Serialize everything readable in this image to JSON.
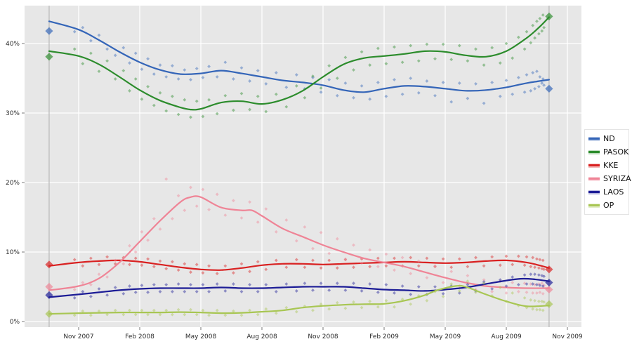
{
  "figure": {
    "title": "",
    "kind": "opinion-polling-scatter-with-loess-trends"
  },
  "legend": {
    "position": "right",
    "labels": [
      "ND",
      "PASOK",
      "KKE",
      "SYRIZA",
      "LAOS",
      "OP"
    ]
  },
  "chart_data": {
    "type": "scatter",
    "title": "",
    "xlabel": "",
    "ylabel": "",
    "grid": true,
    "background_color": "#e7e7e7",
    "gridline_color": "#ffffff",
    "election_line_color": "#bababa",
    "axis_text_color": "#2b2b2b",
    "x_axis": {
      "unit": "months-since-Sep-2007",
      "range_t": [
        -0.66,
        26.7
      ],
      "ticks": [
        {
          "t": 2,
          "label": "Nov 2007"
        },
        {
          "t": 5,
          "label": "Feb 2008"
        },
        {
          "t": 8,
          "label": "May 2008"
        },
        {
          "t": 11,
          "label": "Aug 2008"
        },
        {
          "t": 14,
          "label": "Nov 2008"
        },
        {
          "t": 17,
          "label": "Feb 2009"
        },
        {
          "t": 20,
          "label": "May 2009"
        },
        {
          "t": 23,
          "label": "Aug 2009"
        },
        {
          "t": 26,
          "label": "Nov 2009"
        }
      ]
    },
    "y_axis": {
      "range": [
        -0.8,
        45.4
      ],
      "ticks": [
        {
          "v": 0,
          "label": "0%"
        },
        {
          "v": 10,
          "label": "10%"
        },
        {
          "v": 20,
          "label": "20%"
        },
        {
          "v": 30,
          "label": "30%"
        },
        {
          "v": 40,
          "label": "40%"
        }
      ]
    },
    "election_dates_t": [
      0.55,
      25.1
    ],
    "poll_dates_t": [
      1.8,
      2.2,
      2.6,
      3.0,
      3.4,
      3.8,
      4.2,
      4.5,
      4.8,
      5.1,
      5.4,
      5.7,
      6.0,
      6.3,
      6.6,
      6.9,
      7.2,
      7.5,
      7.8,
      8.1,
      8.4,
      8.8,
      9.2,
      9.6,
      10.0,
      10.4,
      10.8,
      11.2,
      11.7,
      12.2,
      12.7,
      13.1,
      13.5,
      13.9,
      14.3,
      14.7,
      15.1,
      15.5,
      15.9,
      16.3,
      16.7,
      17.1,
      17.5,
      17.9,
      18.3,
      18.7,
      19.1,
      19.5,
      19.9,
      20.3,
      20.7,
      21.1,
      21.5,
      21.9,
      22.3,
      22.7,
      23.0,
      23.3,
      23.6,
      23.9,
      24.0,
      24.2,
      24.3,
      24.4,
      24.5,
      24.6,
      24.65,
      24.75,
      24.8,
      24.85
    ],
    "series": [
      {
        "name": "ND",
        "color": "#3465b8",
        "election_results": [
          41.8,
          33.5
        ],
        "trend": [
          [
            0.55,
            43.2
          ],
          [
            2,
            42.0
          ],
          [
            3,
            40.5
          ],
          [
            4,
            38.8
          ],
          [
            5,
            37.3
          ],
          [
            6,
            36.2
          ],
          [
            7,
            35.6
          ],
          [
            8,
            35.7
          ],
          [
            9,
            36.1
          ],
          [
            10,
            35.7
          ],
          [
            11,
            35.2
          ],
          [
            12,
            34.7
          ],
          [
            13,
            34.4
          ],
          [
            14,
            34.0
          ],
          [
            15,
            33.3
          ],
          [
            16,
            33.0
          ],
          [
            17,
            33.5
          ],
          [
            18,
            33.9
          ],
          [
            19,
            33.8
          ],
          [
            20,
            33.5
          ],
          [
            21,
            33.2
          ],
          [
            22,
            33.3
          ],
          [
            23,
            33.7
          ],
          [
            24,
            34.3
          ],
          [
            25.1,
            34.8
          ]
        ],
        "polls": [
          41.7,
          42.3,
          40.4,
          41.2,
          39.2,
          38.3,
          39.4,
          37.2,
          38.6,
          36.3,
          37.8,
          35.6,
          36.9,
          35.2,
          36.8,
          34.9,
          36.2,
          34.8,
          36.4,
          35.1,
          36.7,
          35.2,
          37.3,
          34.9,
          36.5,
          34.6,
          36.1,
          34.2,
          35.8,
          33.7,
          35.5,
          33.5,
          35.1,
          33.0,
          34.8,
          32.5,
          34.3,
          32.2,
          33.9,
          32.0,
          34.4,
          32.4,
          34.8,
          32.7,
          35.0,
          32.9,
          34.6,
          32.5,
          34.4,
          31.6,
          34.3,
          32.1,
          34.2,
          31.4,
          34.4,
          32.4,
          34.7,
          32.7,
          35.1,
          33.0,
          35.5,
          33.2,
          35.8,
          33.5,
          36.0,
          33.8,
          35.2,
          34.3,
          34.9,
          34.0
        ]
      },
      {
        "name": "PASOK",
        "color": "#2c8c2c",
        "election_results": [
          38.1,
          43.9
        ],
        "trend": [
          [
            0.55,
            38.9
          ],
          [
            2,
            38.2
          ],
          [
            3,
            37.0
          ],
          [
            4,
            35.2
          ],
          [
            5,
            33.3
          ],
          [
            6,
            31.8
          ],
          [
            7,
            30.8
          ],
          [
            7.5,
            30.5
          ],
          [
            8,
            30.6
          ],
          [
            9,
            31.5
          ],
          [
            10,
            31.7
          ],
          [
            11,
            31.3
          ],
          [
            12,
            31.9
          ],
          [
            13,
            33.2
          ],
          [
            14,
            35.2
          ],
          [
            15,
            37.0
          ],
          [
            16,
            37.9
          ],
          [
            17,
            38.2
          ],
          [
            18,
            38.5
          ],
          [
            19,
            38.9
          ],
          [
            20,
            38.8
          ],
          [
            21,
            38.3
          ],
          [
            22,
            38.1
          ],
          [
            23,
            38.9
          ],
          [
            24,
            40.8
          ],
          [
            24.6,
            42.3
          ],
          [
            25.1,
            43.8
          ]
        ],
        "polls": [
          39.2,
          37.1,
          38.6,
          36.0,
          37.5,
          34.9,
          36.1,
          33.2,
          34.9,
          32.0,
          33.8,
          31.1,
          32.9,
          30.3,
          32.4,
          29.8,
          31.9,
          29.4,
          31.7,
          29.5,
          31.9,
          29.9,
          32.5,
          30.4,
          32.8,
          30.5,
          32.4,
          30.2,
          32.7,
          30.9,
          33.9,
          32.2,
          35.3,
          33.6,
          36.8,
          35.0,
          38.0,
          36.2,
          38.8,
          36.9,
          39.3,
          37.1,
          39.5,
          37.3,
          39.7,
          37.5,
          39.9,
          37.8,
          39.9,
          37.7,
          39.7,
          37.5,
          39.2,
          36.9,
          39.4,
          37.2,
          40.0,
          37.9,
          40.9,
          39.2,
          41.7,
          40.1,
          42.6,
          40.8,
          43.2,
          41.4,
          43.6,
          41.8,
          44.1,
          42.3
        ]
      },
      {
        "name": "KKE",
        "color": "#d92121",
        "election_results": [
          8.2,
          7.5
        ],
        "trend": [
          [
            0.55,
            8.0
          ],
          [
            2,
            8.5
          ],
          [
            3,
            8.7
          ],
          [
            4,
            8.8
          ],
          [
            5,
            8.6
          ],
          [
            6,
            8.2
          ],
          [
            7,
            7.8
          ],
          [
            8,
            7.5
          ],
          [
            9,
            7.4
          ],
          [
            10,
            7.7
          ],
          [
            11,
            8.1
          ],
          [
            12,
            8.3
          ],
          [
            13,
            8.3
          ],
          [
            14,
            8.2
          ],
          [
            15,
            8.3
          ],
          [
            16,
            8.4
          ],
          [
            17,
            8.5
          ],
          [
            18,
            8.6
          ],
          [
            19,
            8.5
          ],
          [
            20,
            8.4
          ],
          [
            21,
            8.5
          ],
          [
            22,
            8.7
          ],
          [
            23,
            8.8
          ],
          [
            24,
            8.5
          ],
          [
            24.6,
            8.1
          ],
          [
            25.1,
            7.7
          ]
        ],
        "polls": [
          8.9,
          8.0,
          9.1,
          8.2,
          9.3,
          8.3,
          9.2,
          8.2,
          9.1,
          8.1,
          9.0,
          7.9,
          8.7,
          7.6,
          8.6,
          7.4,
          8.3,
          7.1,
          8.2,
          7.0,
          8.0,
          6.9,
          8.0,
          7.0,
          8.3,
          7.2,
          8.6,
          7.5,
          8.8,
          7.8,
          8.9,
          7.8,
          8.8,
          7.7,
          8.8,
          7.7,
          8.9,
          7.8,
          9.0,
          7.9,
          9.1,
          8.0,
          9.1,
          8.0,
          9.2,
          8.0,
          9.1,
          7.9,
          9.0,
          7.8,
          9.0,
          7.9,
          9.2,
          8.0,
          9.3,
          8.1,
          9.4,
          8.2,
          9.4,
          8.1,
          9.3,
          7.9,
          9.2,
          7.8,
          9.0,
          7.7,
          8.9,
          7.6,
          8.8,
          7.5
        ]
      },
      {
        "name": "SYRIZA",
        "color": "#ef8496",
        "election_results": [
          5.0,
          4.6
        ],
        "trend": [
          [
            0.55,
            4.5
          ],
          [
            2,
            5.1
          ],
          [
            3,
            6.2
          ],
          [
            4,
            8.5
          ],
          [
            5,
            11.5
          ],
          [
            6,
            14.5
          ],
          [
            7,
            17.2
          ],
          [
            7.5,
            17.9
          ],
          [
            8,
            17.9
          ],
          [
            9,
            16.4
          ],
          [
            10,
            16.0
          ],
          [
            10.5,
            16.0
          ],
          [
            11,
            15.2
          ],
          [
            12,
            13.4
          ],
          [
            13,
            12.2
          ],
          [
            14,
            11.0
          ],
          [
            15,
            10.0
          ],
          [
            16,
            9.1
          ],
          [
            17,
            8.5
          ],
          [
            18,
            7.9
          ],
          [
            19,
            7.1
          ],
          [
            20,
            6.3
          ],
          [
            21,
            5.6
          ],
          [
            22,
            5.1
          ],
          [
            23,
            4.9
          ],
          [
            24,
            4.8
          ],
          [
            25.1,
            4.8
          ]
        ],
        "polls": [
          4.6,
          5.6,
          5.3,
          6.8,
          6.4,
          8.8,
          8.3,
          10.9,
          10.0,
          12.9,
          11.7,
          14.8,
          13.3,
          20.5,
          14.8,
          18.1,
          16.0,
          19.3,
          16.6,
          19.0,
          16.1,
          18.3,
          15.3,
          17.4,
          14.9,
          17.2,
          14.3,
          16.2,
          12.9,
          14.6,
          11.6,
          13.6,
          10.5,
          12.8,
          9.8,
          11.9,
          9.0,
          11.0,
          8.4,
          10.3,
          7.9,
          9.7,
          7.4,
          9.2,
          6.9,
          8.7,
          6.3,
          8.0,
          5.6,
          7.2,
          5.1,
          6.6,
          4.6,
          6.0,
          4.3,
          5.8,
          4.1,
          5.6,
          4.3,
          5.5,
          4.2,
          5.4,
          4.1,
          5.3,
          4.1,
          5.4,
          4.2,
          5.5,
          4.0,
          5.2
        ]
      },
      {
        "name": "LAOS",
        "color": "#1c1c96",
        "election_results": [
          3.8,
          5.6
        ],
        "trend": [
          [
            0.55,
            3.5
          ],
          [
            2,
            3.9
          ],
          [
            3,
            4.2
          ],
          [
            4,
            4.5
          ],
          [
            5,
            4.7
          ],
          [
            6,
            4.8
          ],
          [
            7,
            4.8
          ],
          [
            8,
            4.8
          ],
          [
            9,
            4.9
          ],
          [
            10,
            4.8
          ],
          [
            11,
            4.8
          ],
          [
            12,
            4.9
          ],
          [
            13,
            5.0
          ],
          [
            14,
            5.0
          ],
          [
            15,
            5.0
          ],
          [
            16,
            4.8
          ],
          [
            17,
            4.6
          ],
          [
            18,
            4.5
          ],
          [
            19,
            4.4
          ],
          [
            20,
            4.6
          ],
          [
            21,
            4.9
          ],
          [
            22,
            5.4
          ],
          [
            23,
            5.9
          ],
          [
            23.7,
            6.15
          ],
          [
            24.3,
            6.1
          ],
          [
            25.1,
            5.8
          ]
        ],
        "polls": [
          3.4,
          4.3,
          3.6,
          4.7,
          3.8,
          4.9,
          4.0,
          5.1,
          4.2,
          5.2,
          4.2,
          5.3,
          4.3,
          5.3,
          4.3,
          5.4,
          4.3,
          5.3,
          4.3,
          5.3,
          4.3,
          5.4,
          4.4,
          5.4,
          4.3,
          5.3,
          4.3,
          5.3,
          4.3,
          5.4,
          4.4,
          5.5,
          4.5,
          5.5,
          4.5,
          5.5,
          4.5,
          5.5,
          4.4,
          5.4,
          4.2,
          5.3,
          4.1,
          5.1,
          3.9,
          5.0,
          3.9,
          5.0,
          4.0,
          5.1,
          4.1,
          5.3,
          4.4,
          5.7,
          4.7,
          6.0,
          5.1,
          6.4,
          5.3,
          6.7,
          5.4,
          6.8,
          5.4,
          6.8,
          5.3,
          6.7,
          5.2,
          6.6,
          5.1,
          6.5
        ]
      },
      {
        "name": "OP",
        "color": "#a8c653",
        "election_results": [
          1.1,
          2.5
        ],
        "trend": [
          [
            0.55,
            1.1
          ],
          [
            2,
            1.2
          ],
          [
            3,
            1.25
          ],
          [
            4,
            1.3
          ],
          [
            5,
            1.3
          ],
          [
            6,
            1.3
          ],
          [
            7,
            1.35
          ],
          [
            8,
            1.3
          ],
          [
            9,
            1.2
          ],
          [
            10,
            1.25
          ],
          [
            11,
            1.4
          ],
          [
            12,
            1.6
          ],
          [
            13,
            2.0
          ],
          [
            14,
            2.25
          ],
          [
            15,
            2.4
          ],
          [
            16,
            2.5
          ],
          [
            17,
            2.55
          ],
          [
            18,
            3.0
          ],
          [
            19,
            3.8
          ],
          [
            19.6,
            4.5
          ],
          [
            20.5,
            5.1
          ],
          [
            21,
            5.0
          ],
          [
            22,
            3.9
          ],
          [
            23,
            2.9
          ],
          [
            24,
            2.2
          ],
          [
            25.1,
            2.3
          ]
        ],
        "polls": [
          0.9,
          1.5,
          0.9,
          1.5,
          1.0,
          1.6,
          1.0,
          1.6,
          1.0,
          1.6,
          1.0,
          1.6,
          1.0,
          1.6,
          1.0,
          1.7,
          1.0,
          1.7,
          1.0,
          1.6,
          0.9,
          1.6,
          0.9,
          1.5,
          0.9,
          1.6,
          1.0,
          1.8,
          1.2,
          2.0,
          1.4,
          2.2,
          1.6,
          2.5,
          1.8,
          2.7,
          1.9,
          2.8,
          2.0,
          2.9,
          2.1,
          3.0,
          2.1,
          3.2,
          2.5,
          3.7,
          3.0,
          4.3,
          3.6,
          5.4,
          4.4,
          5.8,
          4.2,
          5.5,
          3.7,
          4.9,
          2.9,
          4.1,
          2.3,
          3.4,
          2.0,
          3.1,
          1.8,
          3.0,
          1.7,
          2.9,
          1.7,
          2.9,
          1.6,
          2.8
        ]
      }
    ]
  }
}
